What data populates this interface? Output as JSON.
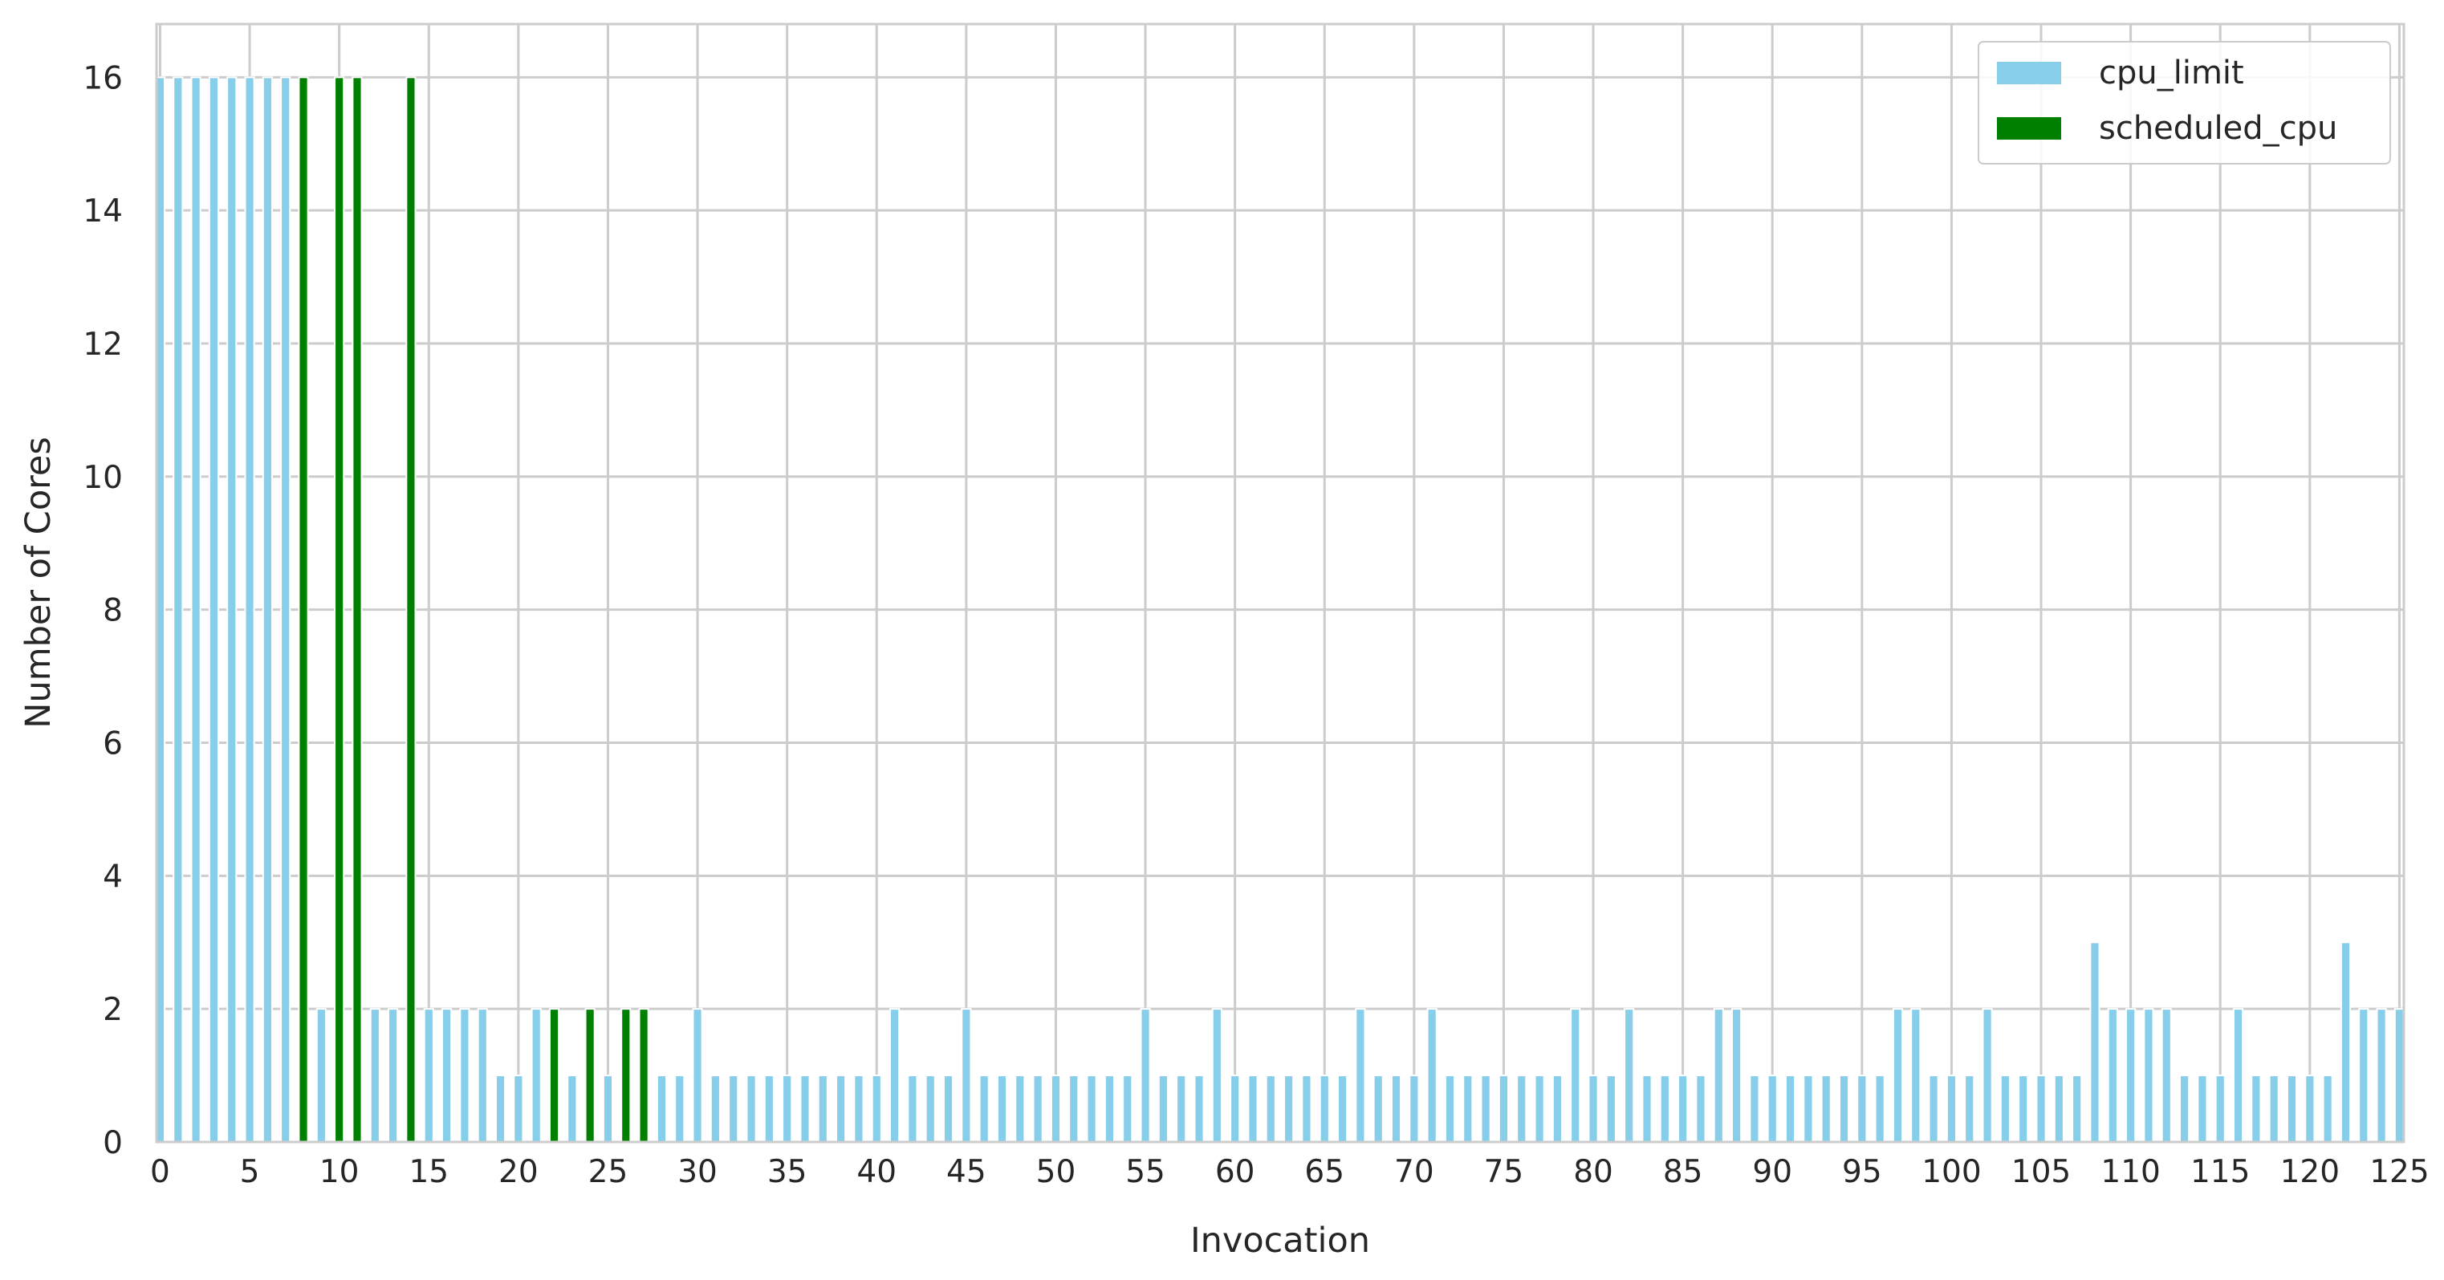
{
  "chart_data": {
    "type": "bar",
    "title": "",
    "xlabel": "Invocation",
    "ylabel": "Number of Cores",
    "xlim": [
      0,
      125
    ],
    "ylim": [
      0,
      16.8
    ],
    "x": [
      0,
      1,
      2,
      3,
      4,
      5,
      6,
      7,
      8,
      9,
      10,
      11,
      12,
      13,
      14,
      15,
      16,
      17,
      18,
      19,
      20,
      21,
      22,
      23,
      24,
      25,
      26,
      27,
      28,
      29,
      30,
      31,
      32,
      33,
      34,
      35,
      36,
      37,
      38,
      39,
      40,
      41,
      42,
      43,
      44,
      45,
      46,
      47,
      48,
      49,
      50,
      51,
      52,
      53,
      54,
      55,
      56,
      57,
      58,
      59,
      60,
      61,
      62,
      63,
      64,
      65,
      66,
      67,
      68,
      69,
      70,
      71,
      72,
      73,
      74,
      75,
      76,
      77,
      78,
      79,
      80,
      81,
      82,
      83,
      84,
      85,
      86,
      87,
      88,
      89,
      90,
      91,
      92,
      93,
      94,
      95,
      96,
      97,
      98,
      99,
      100,
      101,
      102,
      103,
      104,
      105,
      106,
      107,
      108,
      109,
      110,
      111,
      112,
      113,
      114,
      115,
      116,
      117,
      118,
      119,
      120,
      121,
      122,
      123,
      124,
      125
    ],
    "x_ticks": [
      0,
      5,
      10,
      15,
      20,
      25,
      30,
      35,
      40,
      45,
      50,
      55,
      60,
      65,
      70,
      75,
      80,
      85,
      90,
      95,
      100,
      105,
      110,
      115,
      120,
      125
    ],
    "y_ticks": [
      0,
      2,
      4,
      6,
      8,
      10,
      12,
      14,
      16
    ],
    "series": [
      {
        "name": "cpu_limit",
        "color": "#87ceeb",
        "values": [
          16,
          16,
          16,
          16,
          16,
          16,
          16,
          16,
          2,
          2,
          2,
          2,
          2,
          2,
          2,
          2,
          2,
          2,
          2,
          1,
          1,
          2,
          1,
          1,
          1,
          1,
          1,
          1,
          1,
          1,
          2,
          1,
          1,
          1,
          1,
          1,
          1,
          1,
          1,
          1,
          1,
          2,
          1,
          1,
          1,
          2,
          1,
          1,
          1,
          1,
          1,
          1,
          1,
          1,
          1,
          2,
          1,
          1,
          1,
          2,
          1,
          1,
          1,
          1,
          1,
          1,
          1,
          2,
          1,
          1,
          1,
          2,
          1,
          1,
          1,
          1,
          1,
          1,
          1,
          2,
          1,
          1,
          2,
          1,
          1,
          1,
          1,
          2,
          2,
          1,
          1,
          1,
          1,
          1,
          1,
          1,
          1,
          2,
          2,
          1,
          1,
          1,
          2,
          1,
          1,
          1,
          1,
          1,
          3,
          2,
          2,
          2,
          2,
          1,
          1,
          1,
          2,
          1,
          1,
          1,
          1,
          1,
          3,
          2,
          2,
          2
        ]
      },
      {
        "name": "scheduled_cpu",
        "color": "#008000",
        "values": [
          0,
          0,
          0,
          0,
          0,
          0,
          0,
          0,
          16,
          0,
          16,
          16,
          0,
          0,
          16,
          0,
          0,
          0,
          0,
          0,
          0,
          0,
          2,
          0,
          2,
          0,
          2,
          2,
          0,
          0,
          0,
          0,
          0,
          0,
          0,
          0,
          0,
          0,
          0,
          0,
          0,
          0,
          0,
          0,
          0,
          0,
          0,
          0,
          0,
          0,
          0,
          0,
          0,
          0,
          0,
          0,
          0,
          0,
          0,
          0,
          0,
          0,
          0,
          0,
          0,
          0,
          0,
          0,
          0,
          0,
          0,
          0,
          0,
          0,
          0,
          0,
          0,
          0,
          0,
          0,
          0,
          0,
          0,
          0,
          0,
          0,
          0,
          0,
          0,
          0,
          0,
          0,
          0,
          0,
          0,
          0,
          0,
          0,
          0,
          0,
          0,
          0,
          0,
          0,
          0,
          0,
          0,
          0,
          0,
          0,
          0,
          0,
          0,
          0,
          0,
          0,
          0,
          0,
          0,
          0,
          0,
          0,
          0,
          0,
          0,
          0
        ]
      }
    ],
    "grid": true,
    "legend_position": "top-right",
    "colors": {
      "grid": "#cccccc",
      "background": "#ffffff",
      "text": "#262626"
    }
  }
}
